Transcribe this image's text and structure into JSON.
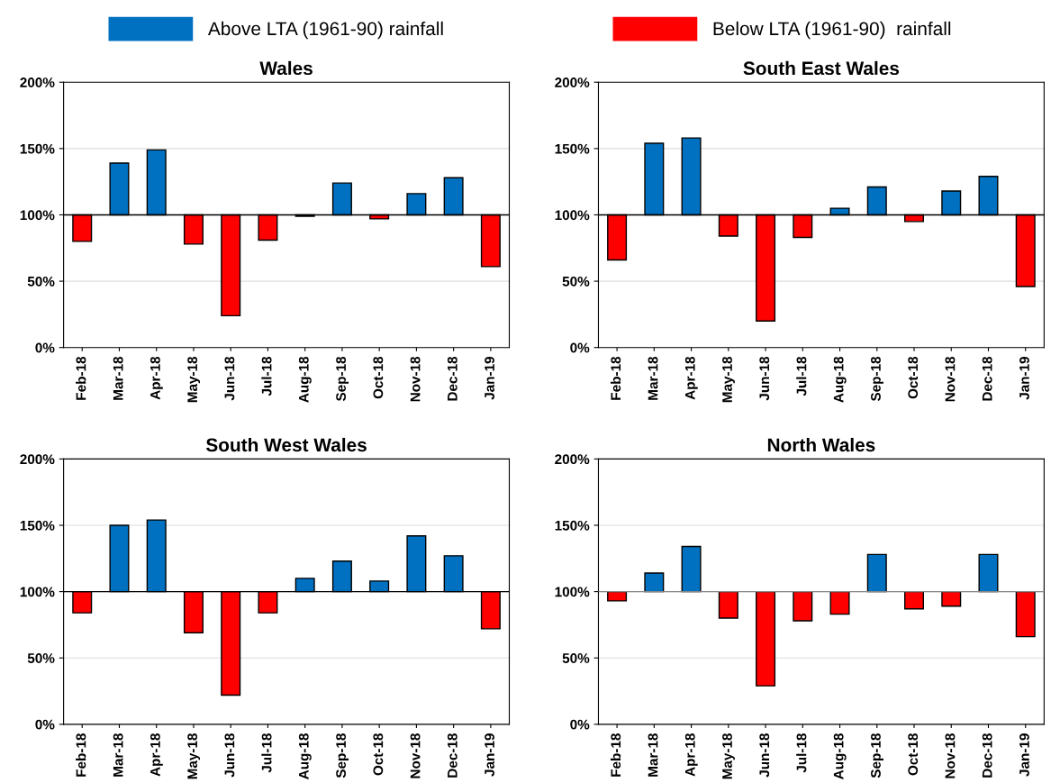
{
  "chart_data": [
    {
      "type": "bar",
      "title": "Wales",
      "legend": "top",
      "grid": "y",
      "categories": [
        "Feb-18",
        "Mar-18",
        "Apr-18",
        "May-18",
        "Jun-18",
        "Jul-18",
        "Aug-18",
        "Sep-18",
        "Oct-18",
        "Nov-18",
        "Dec-18",
        "Jan-19"
      ],
      "series": [
        {
          "name": "Above LTA (1961-90) rainfall",
          "color": "#0070c0",
          "values": [
            null,
            39,
            49,
            null,
            null,
            null,
            null,
            24,
            null,
            16,
            28,
            null
          ],
          "base": [
            null,
            100,
            100,
            null,
            null,
            null,
            null,
            100,
            null,
            100,
            100,
            null
          ]
        },
        {
          "name": "Below LTA (1961-90)  rainfall",
          "color": "#ff0000",
          "values": [
            -20,
            null,
            null,
            -22,
            -76,
            -19,
            -1,
            null,
            -3,
            null,
            null,
            -39
          ],
          "base": [
            100,
            null,
            null,
            100,
            100,
            100,
            100,
            null,
            100,
            null,
            null,
            100
          ]
        }
      ],
      "ylim": [
        0,
        200
      ],
      "yticks": [
        {
          "value": 0,
          "label": "0%"
        },
        {
          "value": 50,
          "label": "50%"
        },
        {
          "value": 100,
          "label": "100%"
        },
        {
          "value": 150,
          "label": "150%"
        },
        {
          "value": 200,
          "label": "200%"
        }
      ],
      "ref_lines": [
        {
          "axis": "y",
          "value": 100,
          "color": "#000000"
        }
      ]
    },
    {
      "type": "bar",
      "title": "South East Wales",
      "grid": "y",
      "categories": [
        "Feb-18",
        "Mar-18",
        "Apr-18",
        "May-18",
        "Jun-18",
        "Jul-18",
        "Aug-18",
        "Sep-18",
        "Oct-18",
        "Nov-18",
        "Dec-18",
        "Jan-19"
      ],
      "series": [
        {
          "color": "#0070c0",
          "values": [
            null,
            54,
            58,
            null,
            null,
            null,
            5,
            21,
            null,
            18,
            29,
            null
          ],
          "base": [
            null,
            100,
            100,
            null,
            null,
            null,
            100,
            100,
            null,
            100,
            100,
            null
          ]
        },
        {
          "color": "#ff0000",
          "values": [
            -34,
            null,
            null,
            -16,
            -80,
            -17,
            null,
            null,
            -5,
            null,
            null,
            -54
          ],
          "base": [
            100,
            null,
            null,
            100,
            100,
            100,
            null,
            null,
            100,
            null,
            null,
            100
          ]
        }
      ],
      "ylim": [
        0,
        200
      ],
      "yticks": [
        {
          "value": 0,
          "label": "0%"
        },
        {
          "value": 50,
          "label": "50%"
        },
        {
          "value": 100,
          "label": "100%"
        },
        {
          "value": 150,
          "label": "150%"
        },
        {
          "value": 200,
          "label": "200%"
        }
      ],
      "ref_lines": [
        {
          "axis": "y",
          "value": 100,
          "color": "#000000"
        }
      ]
    },
    {
      "type": "bar",
      "title": "South West Wales",
      "grid": "y",
      "categories": [
        "Feb-18",
        "Mar-18",
        "Apr-18",
        "May-18",
        "Jun-18",
        "Jul-18",
        "Aug-18",
        "Sep-18",
        "Oct-18",
        "Nov-18",
        "Dec-18",
        "Jan-19"
      ],
      "series": [
        {
          "color": "#0070c0",
          "values": [
            null,
            50,
            54,
            null,
            null,
            null,
            10,
            23,
            8,
            42,
            27,
            null
          ],
          "base": [
            null,
            100,
            100,
            null,
            null,
            null,
            100,
            100,
            100,
            100,
            100,
            null
          ]
        },
        {
          "color": "#ff0000",
          "values": [
            -16,
            null,
            null,
            -31,
            -78,
            -16,
            null,
            null,
            null,
            null,
            null,
            -28
          ],
          "base": [
            100,
            null,
            null,
            100,
            100,
            100,
            null,
            null,
            null,
            null,
            null,
            100
          ]
        }
      ],
      "ylim": [
        0,
        200
      ],
      "yticks": [
        {
          "value": 0,
          "label": "0%"
        },
        {
          "value": 50,
          "label": "50%"
        },
        {
          "value": 100,
          "label": "100%"
        },
        {
          "value": 150,
          "label": "150%"
        },
        {
          "value": 200,
          "label": "200%"
        }
      ],
      "ref_lines": [
        {
          "axis": "y",
          "value": 100,
          "color": "#000000"
        }
      ]
    },
    {
      "type": "bar",
      "title": "North Wales",
      "grid": "y",
      "categories": [
        "Feb-18",
        "Mar-18",
        "Apr-18",
        "May-18",
        "Jun-18",
        "Jul-18",
        "Aug-18",
        "Sep-18",
        "Oct-18",
        "Nov-18",
        "Dec-18",
        "Jan-19"
      ],
      "series": [
        {
          "color": "#0070c0",
          "values": [
            null,
            14,
            34,
            null,
            null,
            null,
            null,
            28,
            null,
            null,
            28,
            null
          ],
          "base": [
            null,
            100,
            100,
            null,
            null,
            null,
            null,
            100,
            null,
            null,
            100,
            null
          ]
        },
        {
          "color": "#ff0000",
          "values": [
            -7,
            null,
            null,
            -20,
            -71,
            -22,
            -17,
            null,
            -13,
            -11,
            null,
            -34
          ],
          "base": [
            100,
            null,
            null,
            100,
            100,
            100,
            100,
            null,
            100,
            100,
            null,
            100
          ]
        }
      ],
      "ylim": [
        0,
        200
      ],
      "yticks": [
        {
          "value": 0,
          "label": "0%"
        },
        {
          "value": 50,
          "label": "50%"
        },
        {
          "value": 100,
          "label": "100%"
        },
        {
          "value": 150,
          "label": "150%"
        },
        {
          "value": 200,
          "label": "200%"
        }
      ],
      "ref_lines": [
        {
          "axis": "y",
          "value": 100,
          "color": "#888888"
        }
      ]
    }
  ]
}
